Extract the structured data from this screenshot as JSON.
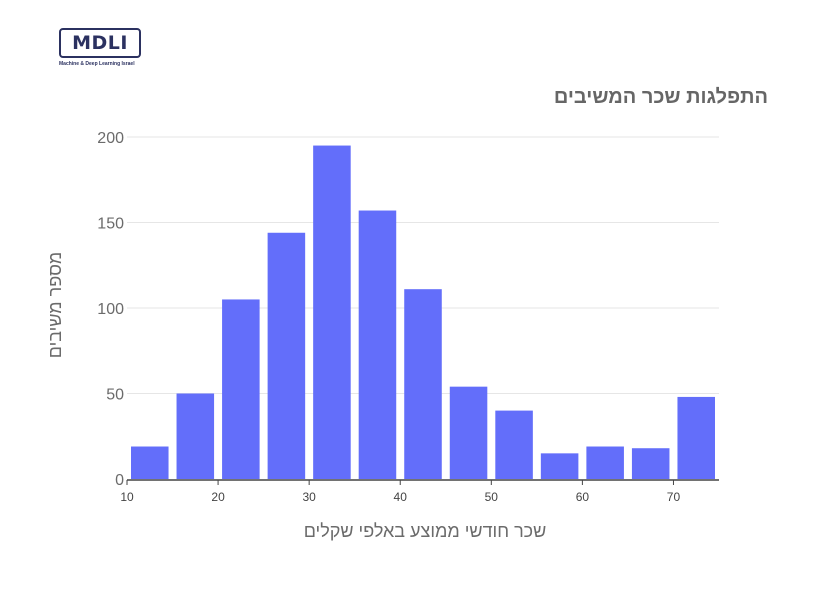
{
  "logo": {
    "text": "MDLI",
    "subtitle": "Machine & Deep Learning Israel"
  },
  "chart_data": {
    "type": "bar",
    "title": "התפלגות שכר המשיבים",
    "xlabel": "שכר חודשי ממוצע באלפי שקלים",
    "ylabel": "מספר משיבים",
    "bin_edges": [
      10,
      15,
      20,
      25,
      30,
      35,
      40,
      45,
      50,
      55,
      60,
      65,
      70,
      75
    ],
    "values": [
      19,
      50,
      105,
      144,
      195,
      157,
      111,
      54,
      40,
      15,
      19,
      18,
      48
    ],
    "xlim": [
      10,
      75
    ],
    "ylim": [
      0,
      200
    ],
    "x_ticks": [
      10,
      20,
      30,
      40,
      50,
      60,
      70
    ],
    "y_ticks": [
      0,
      50,
      100,
      150,
      200
    ],
    "grid": true,
    "bar_color": "#636efa"
  }
}
